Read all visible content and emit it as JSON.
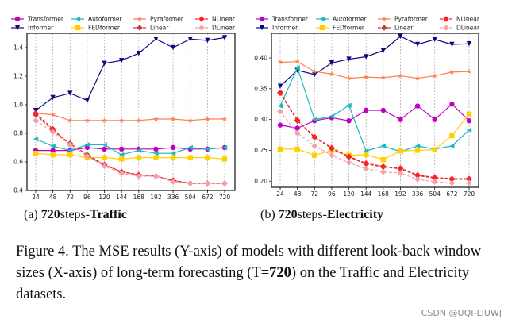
{
  "chart_data": [
    {
      "type": "line",
      "title": "720 steps-Traffic",
      "subcaption": {
        "prefix": "(a)",
        "horizon": "720",
        "mid": "steps-",
        "dataset": "Traffic"
      },
      "xlabel": "",
      "ylabel": "",
      "x": [
        "24",
        "48",
        "72",
        "96",
        "120",
        "144",
        "168",
        "192",
        "336",
        "504",
        "672",
        "720"
      ],
      "ylim": [
        0.4,
        1.5
      ],
      "yticks": [
        0.4,
        0.6,
        0.8,
        1.0,
        1.2,
        1.4
      ],
      "ytick_labels": [
        "0.4",
        "0.6",
        "0.8",
        "1.0",
        "1.2",
        "1.4"
      ],
      "grid": "vertical dashed",
      "legend_position": "top",
      "series": [
        {
          "name": "Transformer",
          "color": "#c000c0",
          "marker": "circle",
          "dash": false,
          "values": [
            0.68,
            0.68,
            0.68,
            0.7,
            0.69,
            0.69,
            0.69,
            0.69,
            0.7,
            0.69,
            0.69,
            0.7
          ]
        },
        {
          "name": "Informer",
          "color": "#0b0b80",
          "marker": "triangle-down",
          "dash": false,
          "values": [
            0.96,
            1.05,
            1.08,
            1.03,
            1.29,
            1.31,
            1.36,
            1.46,
            1.4,
            1.46,
            1.45,
            1.47
          ]
        },
        {
          "name": "Autoformer",
          "color": "#1ab8c0",
          "marker": "triangle-left",
          "dash": false,
          "values": [
            0.76,
            0.71,
            0.68,
            0.72,
            0.72,
            0.65,
            0.68,
            0.66,
            0.66,
            0.7,
            0.69,
            0.7
          ]
        },
        {
          "name": "FEDformer",
          "color": "#ffd000",
          "marker": "square",
          "dash": false,
          "values": [
            0.66,
            0.65,
            0.65,
            0.63,
            0.63,
            0.62,
            0.63,
            0.63,
            0.63,
            0.63,
            0.63,
            0.62
          ]
        },
        {
          "name": "Pyraformer",
          "color": "#ff8050",
          "marker": "star",
          "dash": false,
          "values": [
            0.94,
            0.93,
            0.89,
            0.89,
            0.89,
            0.89,
            0.89,
            0.9,
            0.9,
            0.89,
            0.9,
            0.9
          ]
        },
        {
          "name": "Linear",
          "color": "#c04040",
          "marker": "diamond",
          "dash": true,
          "values": [
            0.93,
            0.82,
            0.73,
            0.65,
            0.58,
            0.53,
            0.51,
            0.5,
            0.47,
            0.45,
            0.45,
            0.45
          ]
        },
        {
          "name": "NLinear",
          "color": "#ff2020",
          "marker": "diamond",
          "dash": true,
          "values": [
            0.94,
            0.83,
            0.72,
            0.64,
            0.58,
            0.53,
            0.51,
            0.5,
            0.47,
            0.45,
            0.45,
            0.45
          ]
        },
        {
          "name": "DLinear",
          "color": "#f4a0a8",
          "marker": "diamond",
          "dash": true,
          "values": [
            0.89,
            0.81,
            0.72,
            0.64,
            0.57,
            0.52,
            0.5,
            0.5,
            0.46,
            0.45,
            0.45,
            0.45
          ]
        }
      ]
    },
    {
      "type": "line",
      "title": "720 steps-Electricity",
      "subcaption": {
        "prefix": "(b)",
        "horizon": "720",
        "mid": "steps-",
        "dataset": "Electricity"
      },
      "xlabel": "",
      "ylabel": "",
      "x": [
        "24",
        "48",
        "72",
        "96",
        "120",
        "144",
        "168",
        "192",
        "336",
        "504",
        "672",
        "720"
      ],
      "ylim": [
        0.19,
        0.44
      ],
      "yticks": [
        0.2,
        0.25,
        0.3,
        0.35,
        0.4
      ],
      "ytick_labels": [
        "0.20",
        "0.25",
        "0.30",
        "0.35",
        "0.40"
      ],
      "grid": "vertical dashed",
      "legend_position": "top",
      "series": [
        {
          "name": "Transformer",
          "color": "#c000c0",
          "marker": "circle",
          "dash": false,
          "values": [
            0.291,
            0.286,
            0.298,
            0.303,
            0.298,
            0.315,
            0.315,
            0.3,
            0.322,
            0.3,
            0.325,
            0.298
          ]
        },
        {
          "name": "Informer",
          "color": "#0b0b80",
          "marker": "triangle-down",
          "dash": false,
          "values": [
            0.354,
            0.38,
            0.373,
            0.392,
            0.398,
            0.402,
            0.412,
            0.435,
            0.422,
            0.43,
            0.422,
            0.423
          ]
        },
        {
          "name": "Autoformer",
          "color": "#1ab8c0",
          "marker": "triangle-left",
          "dash": false,
          "values": [
            0.322,
            0.384,
            0.3,
            0.305,
            0.323,
            0.249,
            0.257,
            0.248,
            0.257,
            0.252,
            0.257,
            0.283
          ]
        },
        {
          "name": "FEDformer",
          "color": "#ffd000",
          "marker": "square",
          "dash": false,
          "values": [
            0.252,
            0.252,
            0.242,
            0.25,
            0.242,
            0.243,
            0.235,
            0.249,
            0.25,
            0.251,
            0.274,
            0.309
          ]
        },
        {
          "name": "Pyraformer",
          "color": "#ff8050",
          "marker": "star",
          "dash": false,
          "values": [
            0.393,
            0.394,
            0.378,
            0.374,
            0.367,
            0.369,
            0.368,
            0.371,
            0.367,
            0.371,
            0.377,
            0.378
          ]
        },
        {
          "name": "Linear",
          "color": "#c04040",
          "marker": "diamond",
          "dash": true,
          "values": [
            0.343,
            0.298,
            0.271,
            0.253,
            0.239,
            0.228,
            0.223,
            0.22,
            0.209,
            0.205,
            0.203,
            0.203
          ]
        },
        {
          "name": "NLinear",
          "color": "#ff2020",
          "marker": "diamond",
          "dash": true,
          "values": [
            0.344,
            0.299,
            0.272,
            0.254,
            0.24,
            0.229,
            0.224,
            0.221,
            0.21,
            0.206,
            0.204,
            0.204
          ]
        },
        {
          "name": "DLinear",
          "color": "#f4a0a8",
          "marker": "diamond",
          "dash": true,
          "values": [
            0.313,
            0.278,
            0.257,
            0.242,
            0.23,
            0.22,
            0.215,
            0.213,
            0.203,
            0.199,
            0.197,
            0.197
          ]
        }
      ]
    }
  ],
  "legend_order": [
    "Transformer",
    "Autoformer",
    "Pyraformer",
    "NLinear",
    "Informer",
    "FEDformer",
    "Linear",
    "DLinear"
  ],
  "caption": {
    "label": "Figure 4.",
    "text_1": " The MSE results (Y-axis) of models with different look-back window sizes (X-axis) of long-term forecasting (T=",
    "bold": "720",
    "text_2": ") on the Traffic and Electricity datasets."
  },
  "watermark": "CSDN @UQI-LIUWJ"
}
